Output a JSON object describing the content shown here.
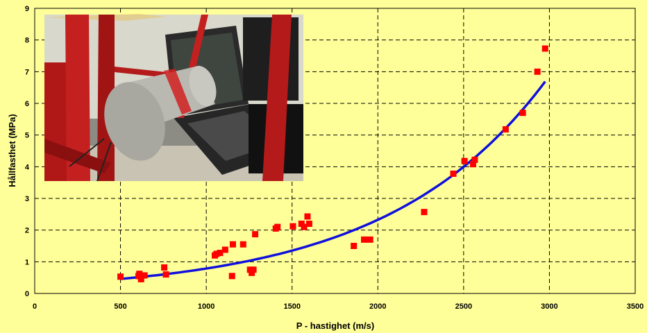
{
  "chart_data": {
    "type": "scatter",
    "title": "",
    "xlabel": "P - hastighet (m/s)",
    "ylabel": "Hållfasthet (MPa)",
    "xlim": [
      0,
      3500
    ],
    "ylim": [
      0,
      9
    ],
    "x_ticks": [
      0,
      500,
      1000,
      1500,
      2000,
      2500,
      3000,
      3500
    ],
    "y_ticks": [
      0,
      1,
      2,
      3,
      4,
      5,
      6,
      7,
      8,
      9
    ],
    "grid": true,
    "legend": "none",
    "colors": {
      "points": "#FF0000",
      "trend": "#0000FF",
      "background": "#FFFF99"
    },
    "points": [
      {
        "x": 500,
        "y": 0.53
      },
      {
        "x": 605,
        "y": 0.55
      },
      {
        "x": 610,
        "y": 0.62
      },
      {
        "x": 620,
        "y": 0.45
      },
      {
        "x": 640,
        "y": 0.57
      },
      {
        "x": 755,
        "y": 0.82
      },
      {
        "x": 765,
        "y": 0.6
      },
      {
        "x": 1050,
        "y": 1.2
      },
      {
        "x": 1060,
        "y": 1.25
      },
      {
        "x": 1080,
        "y": 1.28
      },
      {
        "x": 1110,
        "y": 1.38
      },
      {
        "x": 1150,
        "y": 0.55
      },
      {
        "x": 1155,
        "y": 1.55
      },
      {
        "x": 1215,
        "y": 1.55
      },
      {
        "x": 1255,
        "y": 0.75
      },
      {
        "x": 1265,
        "y": 0.65
      },
      {
        "x": 1275,
        "y": 0.75
      },
      {
        "x": 1285,
        "y": 1.87
      },
      {
        "x": 1405,
        "y": 2.05
      },
      {
        "x": 1415,
        "y": 2.1
      },
      {
        "x": 1505,
        "y": 2.12
      },
      {
        "x": 1555,
        "y": 2.2
      },
      {
        "x": 1570,
        "y": 2.1
      },
      {
        "x": 1590,
        "y": 2.43
      },
      {
        "x": 1600,
        "y": 2.2
      },
      {
        "x": 1860,
        "y": 1.5
      },
      {
        "x": 1920,
        "y": 1.7
      },
      {
        "x": 1955,
        "y": 1.7
      },
      {
        "x": 2270,
        "y": 2.57
      },
      {
        "x": 2440,
        "y": 3.78
      },
      {
        "x": 2505,
        "y": 4.18
      },
      {
        "x": 2555,
        "y": 4.08
      },
      {
        "x": 2565,
        "y": 4.22
      },
      {
        "x": 2745,
        "y": 5.18
      },
      {
        "x": 2845,
        "y": 5.7
      },
      {
        "x": 2930,
        "y": 7.0
      },
      {
        "x": 2975,
        "y": 7.73
      }
    ],
    "trendline": {
      "type": "exponential",
      "x_range": [
        500,
        2975
      ],
      "a": 0.2663,
      "b": 0.0010835
    }
  },
  "photo": {
    "icon": "laptop-and-core-sample-photo"
  }
}
